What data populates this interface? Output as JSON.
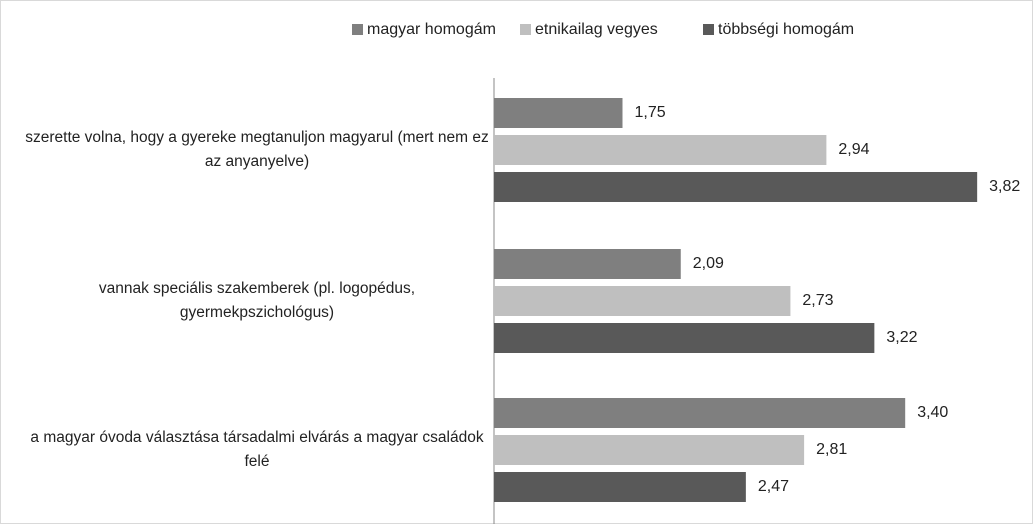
{
  "chart_data": {
    "type": "bar",
    "orientation": "horizontal",
    "categories": [
      "szerette volna, hogy a gyereke megtanuljon magyarul (mert nem ez az anyanyelve)",
      "vannak speciális szakemberek (pl. logopédus, gyermekpszichológus)",
      "a magyar óvoda választása társadalmi elvárás a magyar családok felé"
    ],
    "series": [
      {
        "name": "magyar homogám",
        "color": "#7f7f7f",
        "values": [
          1.75,
          2.09,
          3.4
        ],
        "value_labels": [
          "1,75",
          "2,09",
          "3,40"
        ]
      },
      {
        "name": "etnikailag vegyes",
        "color": "#bfbfbf",
        "values": [
          2.94,
          2.73,
          2.81
        ],
        "value_labels": [
          "2,94",
          "2,73",
          "2,81"
        ]
      },
      {
        "name": "többségi homogám",
        "color": "#595959",
        "values": [
          3.82,
          3.22,
          2.47
        ],
        "value_labels": [
          "3,82",
          "3,22",
          "2,47"
        ]
      }
    ],
    "xlim": [
      1,
      4
    ],
    "legend": "top"
  }
}
